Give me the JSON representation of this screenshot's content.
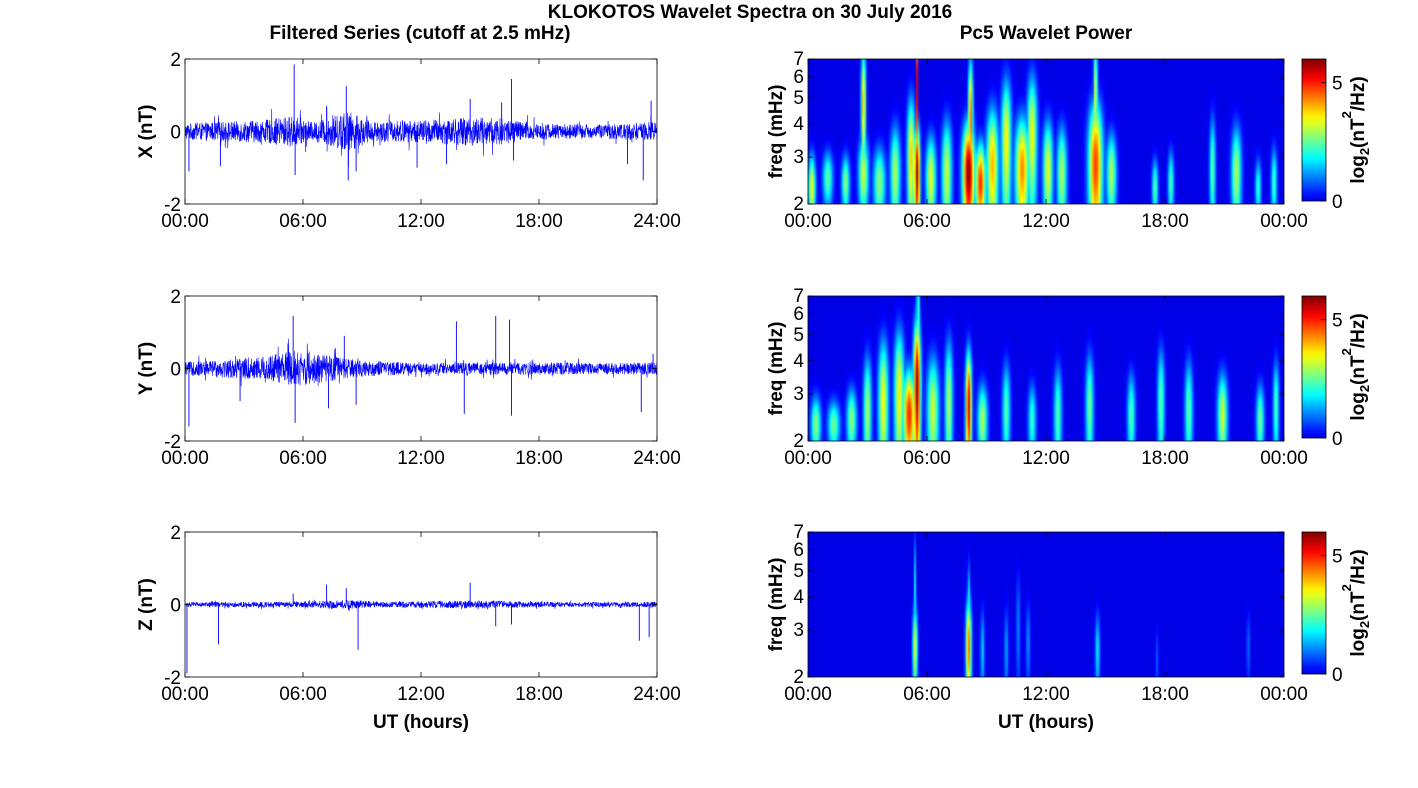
{
  "figure": {
    "suptitle": "KLOKOTOS Wavelet Spectra on 30 July 2016",
    "left_title": "Filtered Series (cutoff at 2.5 mHz)",
    "right_title": "Pc5 Wavelet Power"
  },
  "chart_data": [
    {
      "type": "line",
      "panel": "X",
      "ylabel": "X (nT)",
      "xlabel": "",
      "ylim": [
        -2,
        2
      ],
      "yticks": [
        "-2",
        "0",
        "2"
      ],
      "xticks": [
        "00:00",
        "06:00",
        "12:00",
        "18:00",
        "24:00"
      ],
      "xlim_hours": [
        0,
        24
      ],
      "line_color": "#0000ff",
      "noise_envelope": [
        {
          "hour": 0,
          "amp": 0.18
        },
        {
          "hour": 2,
          "amp": 0.22
        },
        {
          "hour": 4,
          "amp": 0.25
        },
        {
          "hour": 5.5,
          "amp": 0.35
        },
        {
          "hour": 6.5,
          "amp": 0.2
        },
        {
          "hour": 8.3,
          "amp": 0.45
        },
        {
          "hour": 9.5,
          "amp": 0.22
        },
        {
          "hour": 12,
          "amp": 0.25
        },
        {
          "hour": 14.5,
          "amp": 0.32
        },
        {
          "hour": 16,
          "amp": 0.3
        },
        {
          "hour": 18,
          "amp": 0.18
        },
        {
          "hour": 21,
          "amp": 0.15
        },
        {
          "hour": 24,
          "amp": 0.22
        }
      ],
      "spikes": [
        {
          "hour": 0.2,
          "value": -1.1
        },
        {
          "hour": 1.8,
          "value": -0.95
        },
        {
          "hour": 5.55,
          "value": 1.85
        },
        {
          "hour": 5.6,
          "value": -1.2
        },
        {
          "hour": 7.2,
          "value": 0.7
        },
        {
          "hour": 8.2,
          "value": 1.25
        },
        {
          "hour": 8.3,
          "value": -1.35
        },
        {
          "hour": 8.7,
          "value": -1.1
        },
        {
          "hour": 11.8,
          "value": -1.0
        },
        {
          "hour": 13.3,
          "value": -0.9
        },
        {
          "hour": 14.5,
          "value": 0.9
        },
        {
          "hour": 16.1,
          "value": 0.8
        },
        {
          "hour": 16.6,
          "value": 1.45
        },
        {
          "hour": 16.7,
          "value": -0.8
        },
        {
          "hour": 22.5,
          "value": -0.9
        },
        {
          "hour": 23.3,
          "value": -1.35
        },
        {
          "hour": 23.7,
          "value": 0.85
        }
      ]
    },
    {
      "type": "heatmap",
      "panel": "X",
      "ylabel": "freq (mHz)",
      "xlabel": "",
      "ylim_mhz": [
        2,
        7
      ],
      "yscale": "log",
      "yticks": [
        "2",
        "3",
        "4",
        "5",
        "6",
        "7"
      ],
      "xticks": [
        "00:00",
        "06:00",
        "12:00",
        "18:00",
        "00:00"
      ],
      "xlim_hours": [
        0,
        24
      ],
      "colorbar_label": "log2(nT^2/Hz)",
      "clim": [
        0,
        6
      ],
      "cticks": [
        "0",
        "5"
      ],
      "colormap": "jet",
      "blobs": [
        {
          "hour": 0.2,
          "freq": 2.3,
          "power": 3.5,
          "width_h": 0.18,
          "height_mhz": 0.7
        },
        {
          "hour": 1.0,
          "freq": 2.5,
          "power": 2.5,
          "width_h": 0.25,
          "height_mhz": 0.6
        },
        {
          "hour": 1.9,
          "freq": 2.4,
          "power": 2.8,
          "width_h": 0.2,
          "height_mhz": 0.6
        },
        {
          "hour": 2.8,
          "freq": 4.8,
          "power": 4.0,
          "width_h": 0.12,
          "height_mhz": 2.5
        },
        {
          "hour": 2.8,
          "freq": 2.6,
          "power": 3.2,
          "width_h": 0.25,
          "height_mhz": 0.9
        },
        {
          "hour": 3.6,
          "freq": 2.4,
          "power": 2.8,
          "width_h": 0.3,
          "height_mhz": 0.8
        },
        {
          "hour": 4.4,
          "freq": 2.6,
          "power": 3.0,
          "width_h": 0.25,
          "height_mhz": 1.2
        },
        {
          "hour": 5.2,
          "freq": 3.0,
          "power": 3.8,
          "width_h": 0.2,
          "height_mhz": 1.8
        },
        {
          "hour": 5.5,
          "freq": 2.6,
          "power": 6.0,
          "width_h": 0.15,
          "height_mhz": 1.2
        },
        {
          "hour": 5.5,
          "freq": 5.5,
          "power": 5.5,
          "width_h": 0.05,
          "height_mhz": 3.5
        },
        {
          "hour": 6.2,
          "freq": 2.5,
          "power": 3.4,
          "width_h": 0.25,
          "height_mhz": 1.0
        },
        {
          "hour": 7.0,
          "freq": 2.6,
          "power": 3.2,
          "width_h": 0.25,
          "height_mhz": 1.4
        },
        {
          "hour": 8.1,
          "freq": 2.6,
          "power": 6.0,
          "width_h": 0.3,
          "height_mhz": 1.3
        },
        {
          "hour": 8.2,
          "freq": 4.2,
          "power": 4.5,
          "width_h": 0.12,
          "height_mhz": 2.5
        },
        {
          "hour": 8.7,
          "freq": 2.4,
          "power": 5.0,
          "width_h": 0.25,
          "height_mhz": 0.9
        },
        {
          "hour": 9.3,
          "freq": 2.8,
          "power": 4.0,
          "width_h": 0.3,
          "height_mhz": 1.6
        },
        {
          "hour": 10.0,
          "freq": 3.4,
          "power": 3.6,
          "width_h": 0.25,
          "height_mhz": 2.2
        },
        {
          "hour": 10.8,
          "freq": 2.7,
          "power": 4.3,
          "width_h": 0.35,
          "height_mhz": 1.4
        },
        {
          "hour": 11.3,
          "freq": 3.6,
          "power": 3.5,
          "width_h": 0.25,
          "height_mhz": 2.2
        },
        {
          "hour": 12.1,
          "freq": 2.7,
          "power": 3.4,
          "width_h": 0.25,
          "height_mhz": 1.3
        },
        {
          "hour": 12.8,
          "freq": 2.6,
          "power": 3.0,
          "width_h": 0.25,
          "height_mhz": 1.2
        },
        {
          "hour": 14.5,
          "freq": 2.8,
          "power": 4.8,
          "width_h": 0.35,
          "height_mhz": 1.8
        },
        {
          "hour": 14.5,
          "freq": 5.0,
          "power": 3.5,
          "width_h": 0.1,
          "height_mhz": 3.0
        },
        {
          "hour": 15.3,
          "freq": 2.6,
          "power": 3.0,
          "width_h": 0.25,
          "height_mhz": 1.0
        },
        {
          "hour": 17.5,
          "freq": 2.3,
          "power": 2.5,
          "width_h": 0.15,
          "height_mhz": 0.6
        },
        {
          "hour": 18.3,
          "freq": 2.4,
          "power": 2.4,
          "width_h": 0.15,
          "height_mhz": 0.7
        },
        {
          "hour": 20.4,
          "freq": 2.7,
          "power": 2.5,
          "width_h": 0.15,
          "height_mhz": 1.4
        },
        {
          "hour": 21.6,
          "freq": 2.6,
          "power": 3.0,
          "width_h": 0.25,
          "height_mhz": 1.2
        },
        {
          "hour": 22.7,
          "freq": 2.3,
          "power": 2.2,
          "width_h": 0.15,
          "height_mhz": 0.6
        },
        {
          "hour": 23.5,
          "freq": 2.4,
          "power": 2.3,
          "width_h": 0.15,
          "height_mhz": 0.8
        }
      ]
    },
    {
      "type": "line",
      "panel": "Y",
      "ylabel": "Y (nT)",
      "xlabel": "",
      "ylim": [
        -2,
        2
      ],
      "yticks": [
        "-2",
        "0",
        "2"
      ],
      "xticks": [
        "00:00",
        "06:00",
        "12:00",
        "18:00",
        "24:00"
      ],
      "xlim_hours": [
        0,
        24
      ],
      "line_color": "#0000ff",
      "noise_envelope": [
        {
          "hour": 0,
          "amp": 0.15
        },
        {
          "hour": 2,
          "amp": 0.2
        },
        {
          "hour": 4,
          "amp": 0.28
        },
        {
          "hour": 5.5,
          "amp": 0.4
        },
        {
          "hour": 7,
          "amp": 0.3
        },
        {
          "hour": 9,
          "amp": 0.18
        },
        {
          "hour": 12,
          "amp": 0.12
        },
        {
          "hour": 15,
          "amp": 0.14
        },
        {
          "hour": 18,
          "amp": 0.14
        },
        {
          "hour": 21,
          "amp": 0.12
        },
        {
          "hour": 24,
          "amp": 0.14
        }
      ],
      "spikes": [
        {
          "hour": 0.2,
          "value": -1.6
        },
        {
          "hour": 2.8,
          "value": -0.9
        },
        {
          "hour": 5.5,
          "value": 1.45
        },
        {
          "hour": 5.6,
          "value": -1.5
        },
        {
          "hour": 7.3,
          "value": -1.1
        },
        {
          "hour": 8.1,
          "value": 0.9
        },
        {
          "hour": 8.7,
          "value": -1.0
        },
        {
          "hour": 13.8,
          "value": 1.3
        },
        {
          "hour": 14.2,
          "value": -1.25
        },
        {
          "hour": 15.8,
          "value": 1.45
        },
        {
          "hour": 16.5,
          "value": 1.35
        },
        {
          "hour": 16.6,
          "value": -1.3
        },
        {
          "hour": 23.2,
          "value": -1.2
        },
        {
          "hour": 23.8,
          "value": 0.4
        }
      ]
    },
    {
      "type": "heatmap",
      "panel": "Y",
      "ylabel": "freq (mHz)",
      "xlabel": "",
      "ylim_mhz": [
        2,
        7
      ],
      "yscale": "log",
      "yticks": [
        "2",
        "3",
        "4",
        "5",
        "6",
        "7"
      ],
      "xticks": [
        "00:00",
        "06:00",
        "12:00",
        "18:00",
        "00:00"
      ],
      "xlim_hours": [
        0,
        24
      ],
      "colorbar_label": "log2(nT^2/Hz)",
      "clim": [
        0,
        6
      ],
      "cticks": [
        "0",
        "5"
      ],
      "colormap": "jet",
      "blobs": [
        {
          "hour": 0.4,
          "freq": 2.3,
          "power": 2.8,
          "width_h": 0.25,
          "height_mhz": 0.6
        },
        {
          "hour": 1.3,
          "freq": 2.3,
          "power": 2.6,
          "width_h": 0.3,
          "height_mhz": 0.5
        },
        {
          "hour": 2.2,
          "freq": 2.4,
          "power": 2.8,
          "width_h": 0.25,
          "height_mhz": 0.7
        },
        {
          "hour": 3.0,
          "freq": 2.6,
          "power": 3.0,
          "width_h": 0.2,
          "height_mhz": 1.4
        },
        {
          "hour": 3.8,
          "freq": 2.8,
          "power": 3.5,
          "width_h": 0.25,
          "height_mhz": 1.8
        },
        {
          "hour": 4.6,
          "freq": 3.0,
          "power": 3.6,
          "width_h": 0.25,
          "height_mhz": 2.0
        },
        {
          "hour": 5.1,
          "freq": 2.5,
          "power": 5.0,
          "width_h": 0.3,
          "height_mhz": 1.1
        },
        {
          "hour": 5.5,
          "freq": 3.2,
          "power": 6.0,
          "width_h": 0.18,
          "height_mhz": 2.2
        },
        {
          "hour": 5.55,
          "freq": 5.5,
          "power": 5.0,
          "width_h": 0.05,
          "height_mhz": 3.5
        },
        {
          "hour": 6.3,
          "freq": 2.6,
          "power": 3.2,
          "width_h": 0.3,
          "height_mhz": 1.4
        },
        {
          "hour": 7.1,
          "freq": 2.8,
          "power": 3.0,
          "width_h": 0.2,
          "height_mhz": 1.8
        },
        {
          "hour": 8.1,
          "freq": 2.7,
          "power": 5.5,
          "width_h": 0.15,
          "height_mhz": 1.5
        },
        {
          "hour": 8.8,
          "freq": 2.4,
          "power": 3.0,
          "width_h": 0.25,
          "height_mhz": 0.8
        },
        {
          "hour": 10.0,
          "freq": 2.6,
          "power": 2.4,
          "width_h": 0.2,
          "height_mhz": 1.2
        },
        {
          "hour": 11.3,
          "freq": 2.4,
          "power": 2.2,
          "width_h": 0.2,
          "height_mhz": 0.8
        },
        {
          "hour": 12.6,
          "freq": 2.5,
          "power": 2.4,
          "width_h": 0.2,
          "height_mhz": 1.2
        },
        {
          "hour": 14.2,
          "freq": 2.7,
          "power": 2.6,
          "width_h": 0.2,
          "height_mhz": 1.4
        },
        {
          "hour": 16.3,
          "freq": 2.5,
          "power": 2.4,
          "width_h": 0.2,
          "height_mhz": 1.0
        },
        {
          "hour": 17.8,
          "freq": 2.8,
          "power": 2.5,
          "width_h": 0.18,
          "height_mhz": 1.5
        },
        {
          "hour": 19.2,
          "freq": 2.6,
          "power": 2.5,
          "width_h": 0.2,
          "height_mhz": 1.3
        },
        {
          "hour": 20.9,
          "freq": 2.5,
          "power": 3.2,
          "width_h": 0.25,
          "height_mhz": 1.0
        },
        {
          "hour": 22.8,
          "freq": 2.4,
          "power": 2.6,
          "width_h": 0.2,
          "height_mhz": 0.8
        },
        {
          "hour": 23.6,
          "freq": 2.7,
          "power": 2.4,
          "width_h": 0.15,
          "height_mhz": 1.2
        }
      ]
    },
    {
      "type": "line",
      "panel": "Z",
      "ylabel": "Z (nT)",
      "xlabel": "UT (hours)",
      "ylim": [
        -2,
        2
      ],
      "yticks": [
        "-2",
        "0",
        "2"
      ],
      "xticks": [
        "00:00",
        "06:00",
        "12:00",
        "18:00",
        "24:00"
      ],
      "xlim_hours": [
        0,
        24
      ],
      "line_color": "#0000ff",
      "noise_envelope": [
        {
          "hour": 0,
          "amp": 0.05
        },
        {
          "hour": 5,
          "amp": 0.06
        },
        {
          "hour": 8.3,
          "amp": 0.1
        },
        {
          "hour": 10,
          "amp": 0.06
        },
        {
          "hour": 15,
          "amp": 0.09
        },
        {
          "hour": 17,
          "amp": 0.07
        },
        {
          "hour": 20,
          "amp": 0.05
        },
        {
          "hour": 24,
          "amp": 0.06
        }
      ],
      "spikes": [
        {
          "hour": 0.1,
          "value": -1.9
        },
        {
          "hour": 1.7,
          "value": -1.1
        },
        {
          "hour": 5.5,
          "value": 0.3
        },
        {
          "hour": 7.2,
          "value": 0.55
        },
        {
          "hour": 8.2,
          "value": 0.45
        },
        {
          "hour": 8.8,
          "value": -1.25
        },
        {
          "hour": 14.5,
          "value": 0.6
        },
        {
          "hour": 15.8,
          "value": -0.6
        },
        {
          "hour": 16.6,
          "value": -0.55
        },
        {
          "hour": 23.1,
          "value": -1.0
        },
        {
          "hour": 23.6,
          "value": -0.9
        }
      ]
    },
    {
      "type": "heatmap",
      "panel": "Z",
      "ylabel": "freq (mHz)",
      "xlabel": "UT (hours)",
      "ylim_mhz": [
        2,
        7
      ],
      "yscale": "log",
      "yticks": [
        "2",
        "3",
        "4",
        "5",
        "6",
        "7"
      ],
      "xticks": [
        "00:00",
        "06:00",
        "12:00",
        "18:00",
        "00:00"
      ],
      "xlim_hours": [
        0,
        24
      ],
      "colorbar_label": "log2(nT^2/Hz)",
      "clim": [
        0,
        6
      ],
      "cticks": [
        "0",
        "5"
      ],
      "colormap": "jet",
      "blobs": [
        {
          "hour": 5.4,
          "freq": 2.6,
          "power": 3.5,
          "width_h": 0.12,
          "height_mhz": 1.0
        },
        {
          "hour": 5.4,
          "freq": 4.2,
          "power": 1.8,
          "width_h": 0.05,
          "height_mhz": 2.2
        },
        {
          "hour": 8.1,
          "freq": 2.6,
          "power": 4.5,
          "width_h": 0.14,
          "height_mhz": 1.2
        },
        {
          "hour": 8.1,
          "freq": 3.8,
          "power": 2.0,
          "width_h": 0.07,
          "height_mhz": 1.4
        },
        {
          "hour": 8.8,
          "freq": 2.5,
          "power": 1.6,
          "width_h": 0.1,
          "height_mhz": 1.0
        },
        {
          "hour": 10.0,
          "freq": 2.5,
          "power": 1.3,
          "width_h": 0.1,
          "height_mhz": 1.0
        },
        {
          "hour": 10.6,
          "freq": 3.1,
          "power": 1.1,
          "width_h": 0.1,
          "height_mhz": 1.6
        },
        {
          "hour": 11.1,
          "freq": 2.7,
          "power": 1.2,
          "width_h": 0.1,
          "height_mhz": 1.0
        },
        {
          "hour": 14.6,
          "freq": 2.5,
          "power": 1.8,
          "width_h": 0.12,
          "height_mhz": 0.9
        },
        {
          "hour": 17.6,
          "freq": 2.3,
          "power": 0.8,
          "width_h": 0.08,
          "height_mhz": 0.6
        },
        {
          "hour": 22.2,
          "freq": 2.6,
          "power": 1.0,
          "width_h": 0.08,
          "height_mhz": 0.8
        }
      ]
    }
  ]
}
